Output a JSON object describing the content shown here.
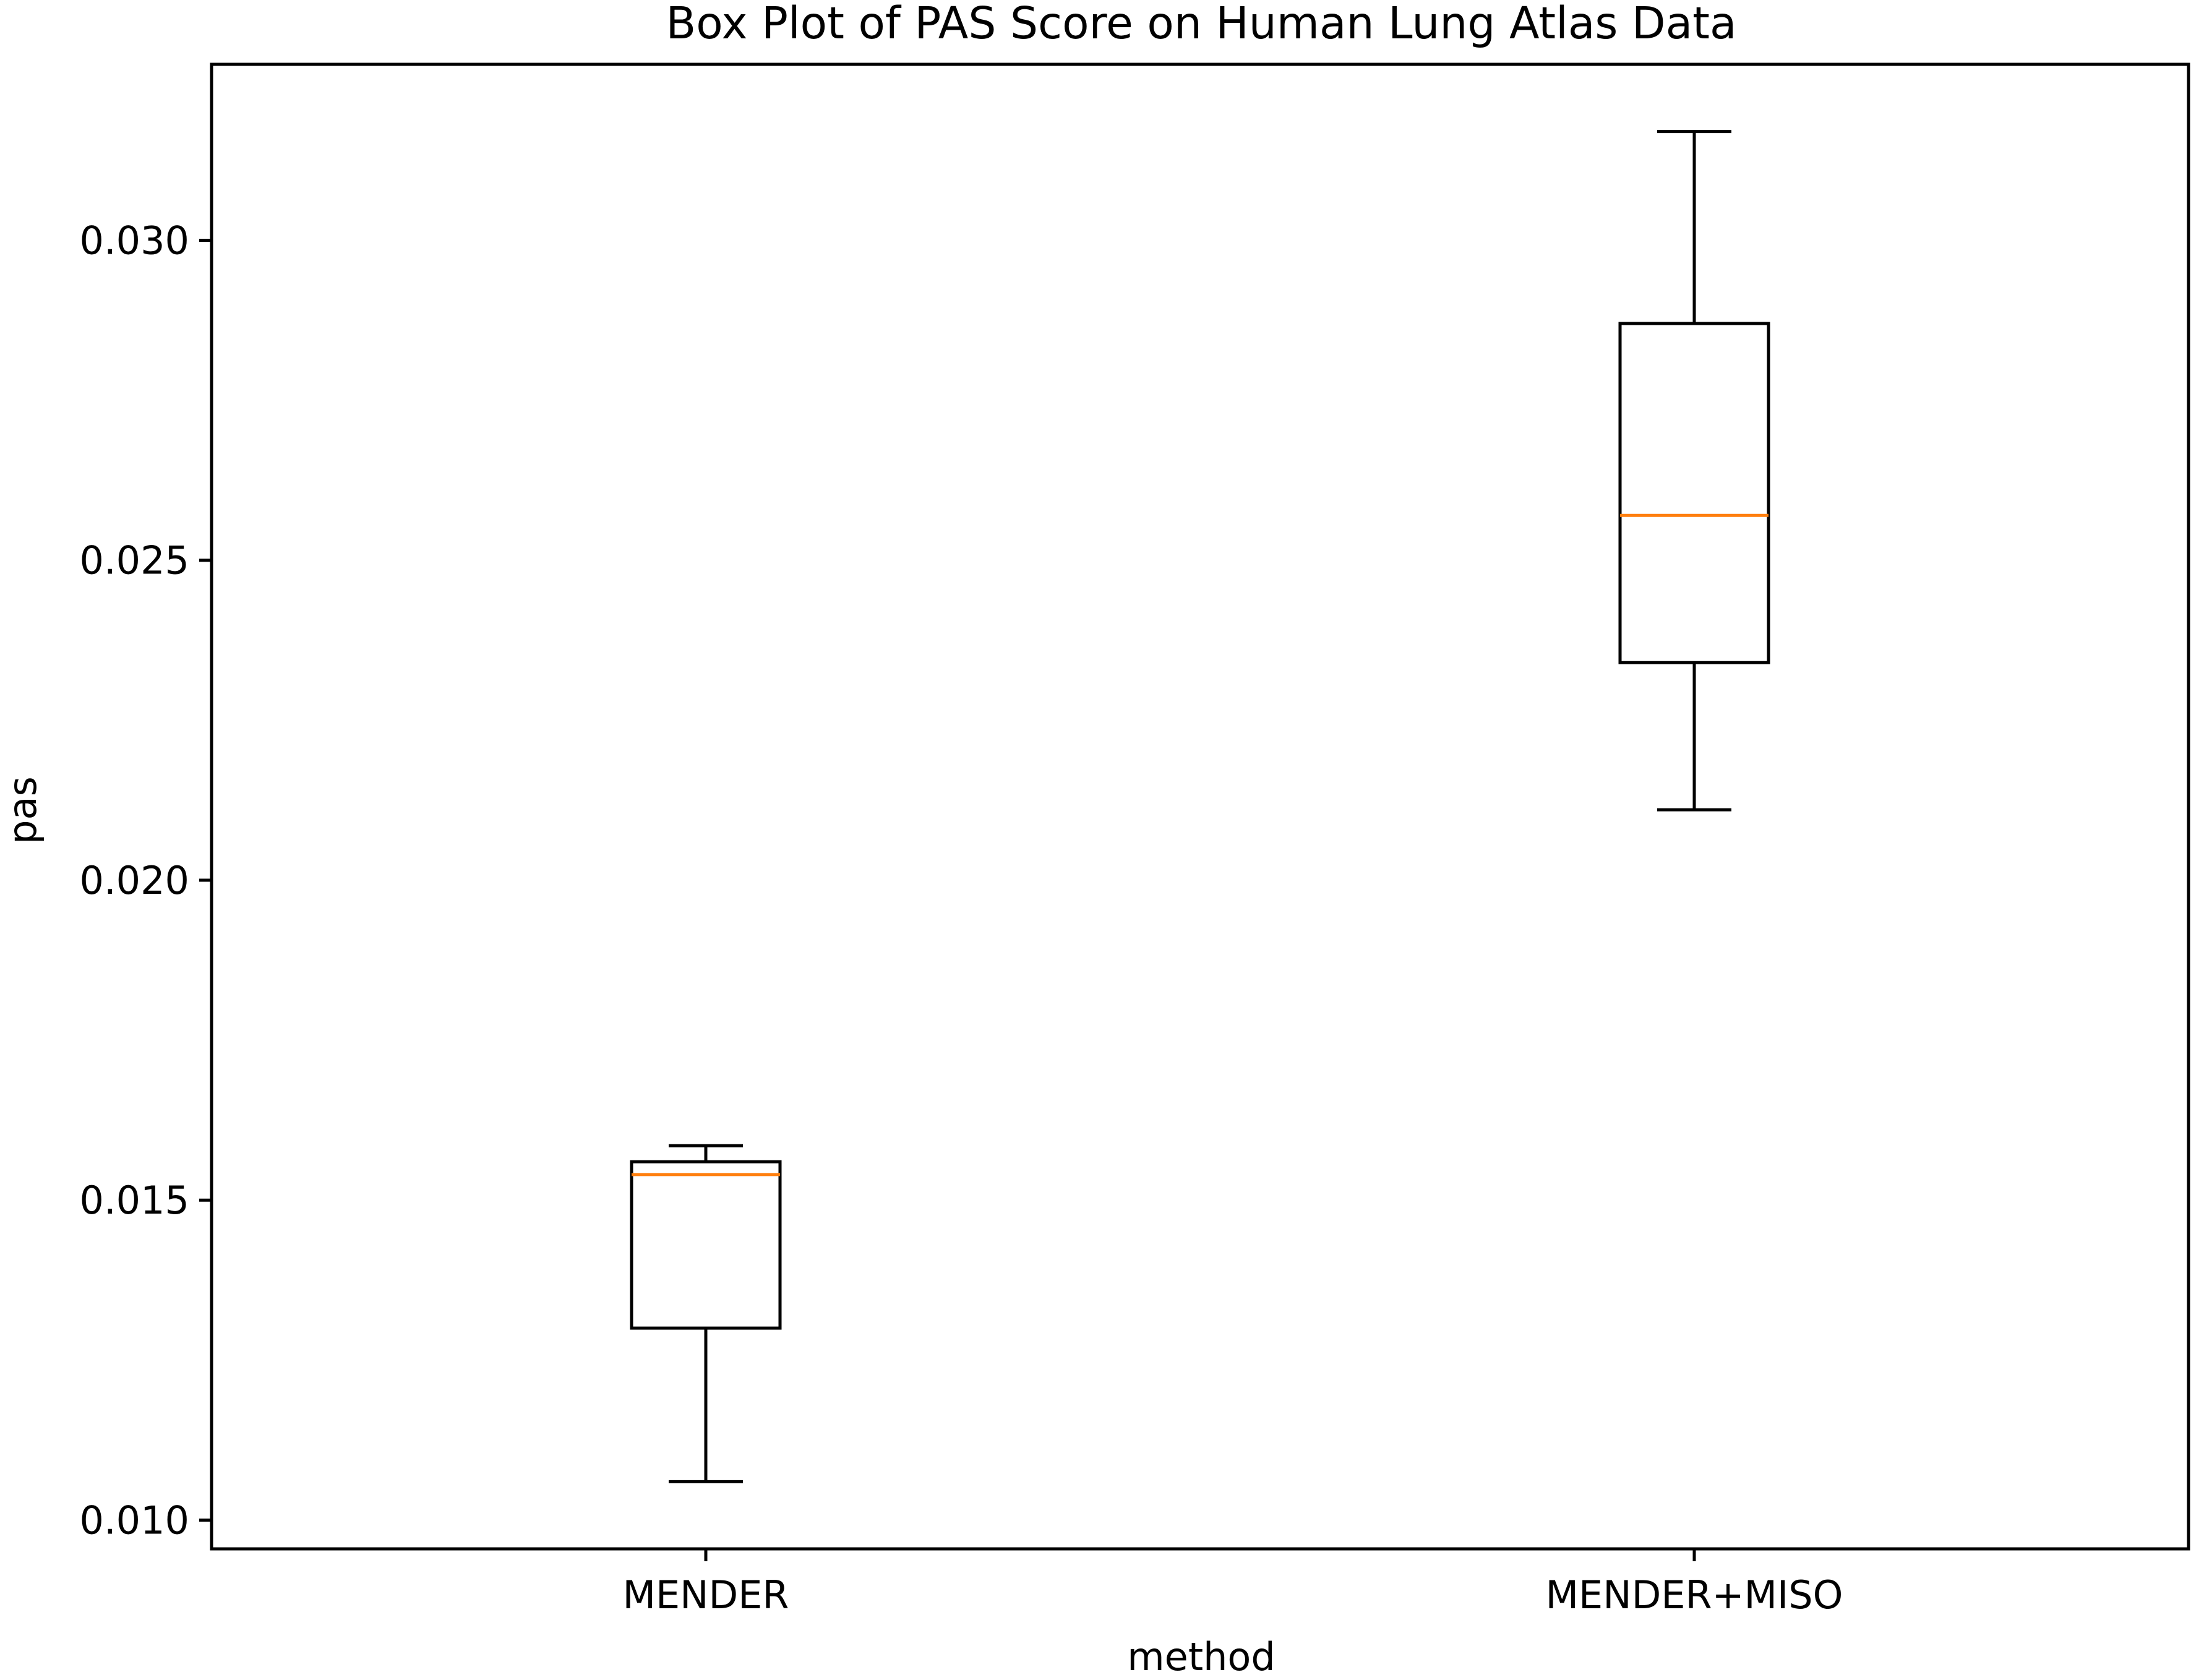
{
  "chart_data": {
    "type": "box",
    "title": "Box Plot of PAS Score on Human Lung Atlas Data",
    "xlabel": "method",
    "ylabel": "pas",
    "categories": [
      "MENDER",
      "MENDER+MISO"
    ],
    "boxes": [
      {
        "category": "MENDER",
        "whisker_low": 0.0106,
        "q1": 0.013,
        "median": 0.0154,
        "q3": 0.0156,
        "whisker_high": 0.01585
      },
      {
        "category": "MENDER+MISO",
        "whisker_low": 0.0211,
        "q1": 0.0234,
        "median": 0.0257,
        "q3": 0.0287,
        "whisker_high": 0.0317
      }
    ],
    "ylim": [
      0.00955,
      0.03275
    ],
    "yticks": [
      0.01,
      0.015,
      0.02,
      0.025,
      0.03
    ],
    "ytick_labels": [
      "0.010",
      "0.015",
      "0.020",
      "0.025",
      "0.030"
    ],
    "grid": false,
    "colors": {
      "box": "#000000",
      "median": "#ff7f0e"
    }
  }
}
